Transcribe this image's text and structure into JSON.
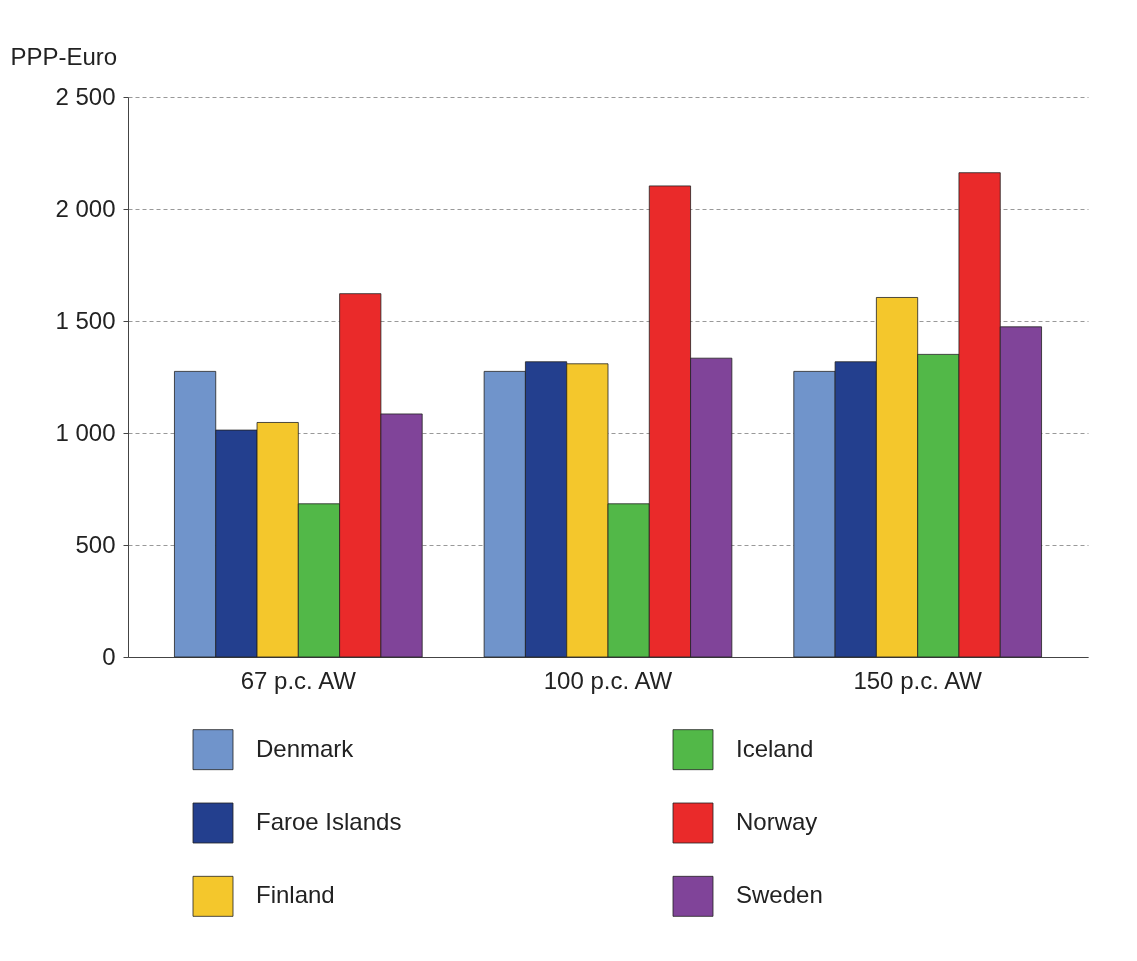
{
  "chart_data": {
    "type": "bar",
    "ylabel": "PPP-Euro",
    "categories": [
      "67 p.c. AW",
      "100 p.c. AW",
      "150 p.c. AW"
    ],
    "series": [
      {
        "name": "Denmark",
        "color": "#7094cb",
        "values": [
          1275,
          1275,
          1275
        ]
      },
      {
        "name": "Faroe Islands",
        "color": "#233f8e",
        "values": [
          1013,
          1318,
          1318
        ]
      },
      {
        "name": "Finland",
        "color": "#f4c72c",
        "values": [
          1047,
          1309,
          1605
        ]
      },
      {
        "name": "Iceland",
        "color": "#52b848",
        "values": [
          684,
          684,
          1351
        ]
      },
      {
        "name": "Norway",
        "color": "#ea2a2a",
        "values": [
          1622,
          2103,
          2162
        ]
      },
      {
        "name": "Sweden",
        "color": "#804499",
        "values": [
          1085,
          1334,
          1474
        ]
      }
    ],
    "ylim": [
      0,
      2500
    ],
    "yticks": [
      0,
      500,
      {
        "value": 1000,
        "label": "1 000"
      },
      {
        "value": 1500,
        "label": "1 500"
      },
      {
        "value": 2000,
        "label": "2 000"
      },
      {
        "value": 2500,
        "label": "2 500"
      }
    ],
    "grid": "y",
    "legend": "bottom"
  }
}
